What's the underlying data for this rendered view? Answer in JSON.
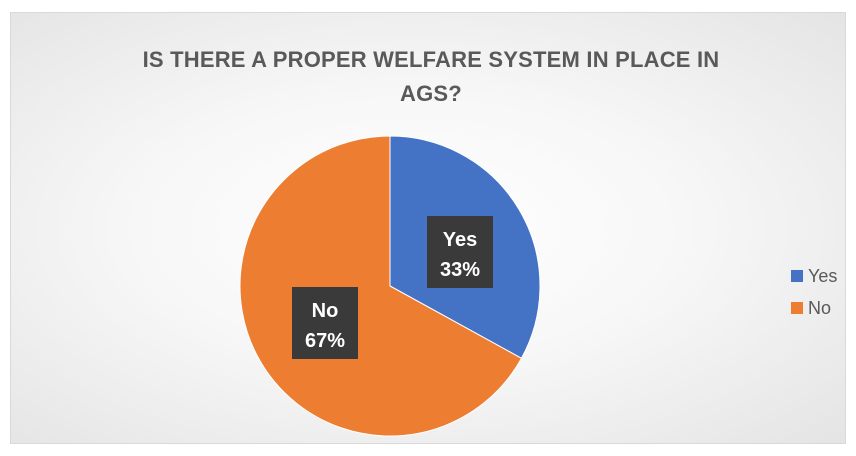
{
  "chart_data": {
    "type": "pie",
    "title": "IS THERE A PROPER WELFARE SYSTEM IN PLACE IN AGS?",
    "categories": [
      "Yes",
      "No"
    ],
    "values": [
      33,
      67
    ],
    "data_labels": [
      {
        "category": "Yes",
        "percent": "33%"
      },
      {
        "category": "No",
        "percent": "67%"
      }
    ],
    "colors": [
      "#4472c4",
      "#ed7d31"
    ],
    "legend_position": "right"
  }
}
